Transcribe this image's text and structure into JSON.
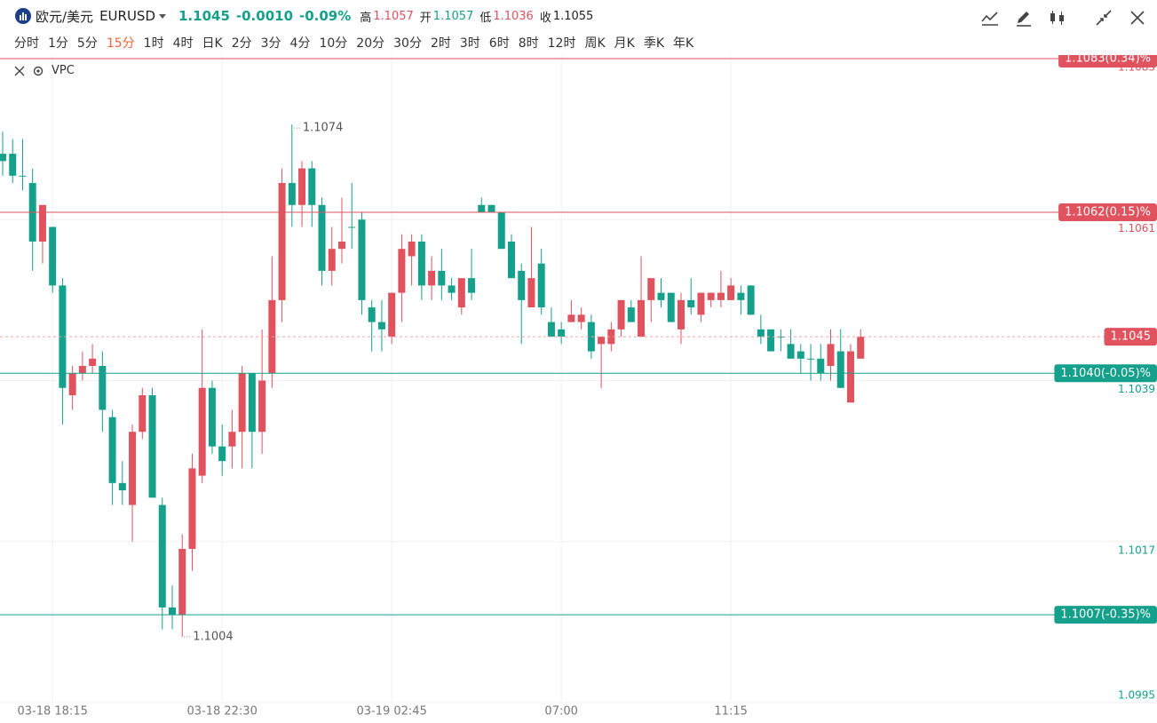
{
  "header": {
    "name": "欧元/美元",
    "symbol": "EURUSD",
    "price": "1.1045",
    "change": "-0.0010",
    "change_pct": "-0.09%",
    "stats": [
      {
        "label": "高",
        "value": "1.1057"
      },
      {
        "label": "开",
        "value": "1.1057"
      },
      {
        "label": "低",
        "value": "1.1036"
      },
      {
        "label": "收",
        "value": "1.1055"
      }
    ]
  },
  "tabs": [
    "分时",
    "1分",
    "5分",
    "15分",
    "1时",
    "4时",
    "日K",
    "2分",
    "3分",
    "4分",
    "10分",
    "20分",
    "30分",
    "2时",
    "3时",
    "6时",
    "8时",
    "12时",
    "周K",
    "月K",
    "季K",
    "年K"
  ],
  "active_tab": 3,
  "indicator": "VPC",
  "chart_data": {
    "type": "candlestick",
    "up_color": "#e0525e",
    "down_color": "#14a08a",
    "categories": [
      null,
      null,
      null,
      null,
      null,
      "03-18 18:15",
      null,
      null,
      null,
      null,
      null,
      null,
      null,
      null,
      null,
      null,
      null,
      null,
      null,
      null,
      null,
      null,
      "03-18 22:30",
      null,
      null,
      null,
      null,
      null,
      null,
      null,
      null,
      null,
      null,
      null,
      null,
      null,
      null,
      null,
      null,
      "03-19 02:45",
      null,
      null,
      null,
      null,
      null,
      null,
      null,
      null,
      null,
      null,
      null,
      null,
      null,
      null,
      null,
      null,
      "07:00",
      null,
      null,
      null,
      null,
      null,
      null,
      null,
      null,
      null,
      null,
      null,
      null,
      null,
      null,
      null,
      null,
      "11:15",
      null,
      null,
      null,
      null,
      null,
      null,
      null,
      null,
      null,
      null,
      null,
      null,
      null
    ],
    "open": [
      1.107,
      1.107,
      1.1067,
      1.1066,
      1.1058,
      1.106,
      1.1052,
      1.1037,
      1.104,
      1.1041,
      1.1041,
      1.1034,
      1.1025,
      1.1022,
      1.1032,
      1.1037,
      1.1022,
      1.1008,
      1.1007,
      1.1016,
      1.1026,
      1.1038,
      1.103,
      1.103,
      1.1032,
      1.104,
      1.1032,
      1.104,
      1.105,
      1.1066,
      1.1063,
      1.1068,
      1.1063,
      1.1054,
      1.1057,
      1.106,
      1.1061,
      1.1049,
      1.1047,
      1.1045,
      1.1051,
      1.1056,
      1.1058,
      1.1052,
      1.1054,
      1.1052,
      1.1049,
      1.1053,
      1.1063,
      1.1063,
      1.1062,
      1.1058,
      1.1054,
      1.1049,
      1.1055,
      1.1047,
      1.1046,
      1.1047,
      1.1047,
      1.1047,
      1.1044,
      1.1044,
      1.1046,
      1.1049,
      1.1045,
      1.105,
      1.1051,
      1.1051,
      1.1046,
      1.105,
      1.1048,
      1.105,
      1.105,
      1.105,
      1.1051,
      1.1052,
      1.1046,
      1.1046,
      1.1045,
      1.1044,
      1.1043,
      1.1042,
      1.1042,
      1.1041,
      1.1043,
      1.1036,
      1.1042
    ],
    "high": [
      1.1073,
      1.1072,
      1.1072,
      1.1068,
      1.1063,
      1.106,
      1.1053,
      1.1041,
      1.1043,
      1.1044,
      1.1043,
      1.1035,
      1.1028,
      1.1033,
      1.1038,
      1.1038,
      1.1023,
      1.1011,
      1.1018,
      1.1029,
      1.1046,
      1.1039,
      1.1033,
      1.1035,
      1.1041,
      1.104,
      1.1046,
      1.1056,
      1.1068,
      1.1074,
      1.1069,
      1.1069,
      1.1064,
      1.106,
      1.1064,
      1.1066,
      1.1062,
      1.105,
      1.105,
      1.1051,
      1.1059,
      1.1059,
      1.1059,
      1.1056,
      1.1057,
      1.1053,
      1.1053,
      1.1057,
      1.1064,
      1.1063,
      1.1062,
      1.1059,
      1.1055,
      1.106,
      1.1057,
      1.1049,
      1.1047,
      1.105,
      1.1049,
      1.1048,
      1.1045,
      1.1047,
      1.105,
      1.105,
      1.1056,
      1.1053,
      1.1053,
      1.1051,
      1.1051,
      1.1053,
      1.1051,
      1.1051,
      1.1054,
      1.1053,
      1.1052,
      1.1052,
      1.1048,
      1.1046,
      1.1046,
      1.1046,
      1.1044,
      1.1044,
      1.1044,
      1.1046,
      1.1046,
      1.1044,
      1.1046
    ],
    "low": [
      1.1067,
      1.1066,
      1.1065,
      1.1054,
      1.1055,
      1.1051,
      1.1033,
      1.1035,
      1.1039,
      1.104,
      1.1032,
      1.1022,
      1.1022,
      1.1017,
      1.1031,
      1.1023,
      1.1005,
      1.1005,
      1.1004,
      1.1013,
      1.1025,
      1.1029,
      1.1026,
      1.1027,
      1.1027,
      1.1027,
      1.1029,
      1.1038,
      1.1047,
      1.106,
      1.106,
      1.106,
      1.1052,
      1.1052,
      1.1055,
      1.1057,
      1.1048,
      1.1043,
      1.1043,
      1.1044,
      1.1047,
      1.1052,
      1.105,
      1.105,
      1.105,
      1.105,
      1.1048,
      1.105,
      1.1062,
      1.1062,
      1.1057,
      1.1053,
      1.1044,
      1.1049,
      1.1048,
      1.1045,
      1.1044,
      1.1047,
      1.1046,
      1.1042,
      1.1038,
      1.1043,
      1.1045,
      1.1047,
      1.1045,
      1.1047,
      1.1049,
      1.1047,
      1.1044,
      1.1048,
      1.1047,
      1.1049,
      1.1049,
      1.105,
      1.1048,
      1.1048,
      1.1044,
      1.1043,
      1.1043,
      1.1042,
      1.104,
      1.1039,
      1.1039,
      1.1039,
      1.1038,
      1.1036,
      1.1042
    ],
    "close": [
      1.1069,
      1.1067,
      1.1067,
      1.1058,
      1.1063,
      1.1052,
      1.1038,
      1.104,
      1.1041,
      1.1042,
      1.1035,
      1.1025,
      1.1024,
      1.1032,
      1.1037,
      1.1023,
      1.1008,
      1.1007,
      1.1016,
      1.1027,
      1.1038,
      1.103,
      1.1028,
      1.1032,
      1.104,
      1.1032,
      1.1039,
      1.105,
      1.1066,
      1.1063,
      1.1068,
      1.1063,
      1.1054,
      1.1057,
      1.1058,
      1.106,
      1.105,
      1.1047,
      1.1046,
      1.1051,
      1.1057,
      1.1058,
      1.1052,
      1.1054,
      1.1052,
      1.1051,
      1.1053,
      1.1051,
      1.1062,
      1.1062,
      1.1057,
      1.1053,
      1.105,
      1.1053,
      1.1049,
      1.1045,
      1.1045,
      1.1048,
      1.1048,
      1.1043,
      1.1045,
      1.1046,
      1.105,
      1.1047,
      1.105,
      1.1053,
      1.105,
      1.1047,
      1.105,
      1.1049,
      1.1051,
      1.1051,
      1.1051,
      1.1052,
      1.105,
      1.1048,
      1.1045,
      1.1043,
      1.1045,
      1.1042,
      1.1042,
      1.1042,
      1.104,
      1.1044,
      1.1038,
      1.1043,
      1.1045
    ],
    "ylim": [
      1.0995,
      1.1083
    ],
    "yticks": [
      1.0995,
      1.1017,
      1.1039,
      1.1061,
      1.1083
    ],
    "grid": true,
    "last_price": 1.1045,
    "price_lines": [
      {
        "value": 1.1083,
        "label": "1.1083(0.34)%",
        "color": "#e0525e"
      },
      {
        "value": 1.1062,
        "label": "1.1062(0.15)%",
        "color": "#e0525e"
      },
      {
        "value": 1.104,
        "label": "1.1040(-0.05)%",
        "color": "#14a08a"
      },
      {
        "value": 1.1007,
        "label": "1.1007(-0.35)%",
        "color": "#14a08a"
      }
    ],
    "high_annotation": 1.1074,
    "low_annotation": 1.1004
  }
}
